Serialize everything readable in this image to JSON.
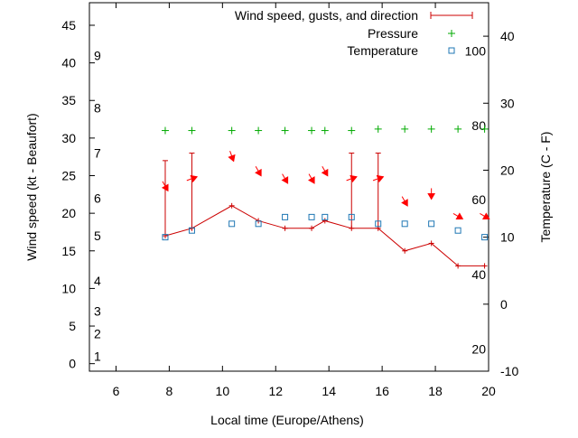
{
  "chart_data": {
    "type": "line",
    "xlabel": "Local time (Europe/Athens)",
    "ylabel": "Wind speed (kt - Beaufort)",
    "y2label": "Temperature (C - F)",
    "xlim": [
      5,
      20
    ],
    "ylim": [
      -1,
      48
    ],
    "y2lim": [
      -10,
      45
    ],
    "x_ticks": [
      6,
      8,
      10,
      12,
      14,
      16,
      18,
      20
    ],
    "y_ticks": [
      0,
      5,
      10,
      15,
      20,
      25,
      30,
      35,
      40,
      45
    ],
    "y2_ticks": [
      -10,
      0,
      10,
      20,
      30,
      40
    ],
    "beaufort_labels": [
      {
        "label": "1",
        "kt": 1
      },
      {
        "label": "2",
        "kt": 4
      },
      {
        "label": "3",
        "kt": 7
      },
      {
        "label": "4",
        "kt": 11
      },
      {
        "label": "5",
        "kt": 17
      },
      {
        "label": "6",
        "kt": 22
      },
      {
        "label": "7",
        "kt": 28
      },
      {
        "label": "8",
        "kt": 34
      },
      {
        "label": "9",
        "kt": 41
      }
    ],
    "fahrenheit_labels": [
      {
        "label": "20",
        "c": -6.7
      },
      {
        "label": "40",
        "c": 4.4
      },
      {
        "label": "60",
        "c": 15.6
      },
      {
        "label": "80",
        "c": 26.7
      },
      {
        "label": "100",
        "c": 37.8
      }
    ],
    "legend": {
      "position": "top-right",
      "entries": [
        "Wind speed, gusts, and direction",
        "Pressure",
        "Temperature"
      ]
    },
    "colors": {
      "wind": "#cc0000",
      "arrow": "#ff0000",
      "pressure": "#00aa00",
      "temperature": "#1f77b4",
      "axis": "#000000"
    },
    "wind": {
      "x": [
        7.85,
        8.85,
        10.35,
        11.35,
        12.35,
        13.35,
        13.85,
        14.85,
        15.85,
        16.85,
        17.85,
        18.85,
        19.85
      ],
      "speed": [
        17,
        18,
        21,
        19,
        18,
        18,
        19,
        18,
        18,
        15,
        16,
        13,
        13
      ],
      "gust": [
        27,
        28,
        null,
        null,
        null,
        null,
        null,
        28,
        28,
        null,
        null,
        null,
        null
      ],
      "direction_deg": [
        330,
        250,
        340,
        330,
        330,
        330,
        330,
        250,
        250,
        330,
        0,
        300,
        300
      ]
    },
    "pressure": {
      "x": [
        7.85,
        8.85,
        10.35,
        11.35,
        12.35,
        13.35,
        13.85,
        14.85,
        15.85,
        16.85,
        17.85,
        18.85,
        19.85
      ],
      "y": [
        31,
        31,
        31,
        31,
        31,
        31,
        31,
        31,
        31.2,
        31.2,
        31.2,
        31.2,
        31.2
      ]
    },
    "temperature": {
      "x": [
        7.85,
        8.85,
        10.35,
        11.35,
        12.35,
        13.35,
        13.85,
        14.85,
        15.85,
        16.85,
        17.85,
        18.85,
        19.85
      ],
      "c": [
        10,
        11,
        12,
        12,
        13,
        13,
        13,
        13,
        12,
        12,
        12,
        11,
        10
      ]
    }
  }
}
